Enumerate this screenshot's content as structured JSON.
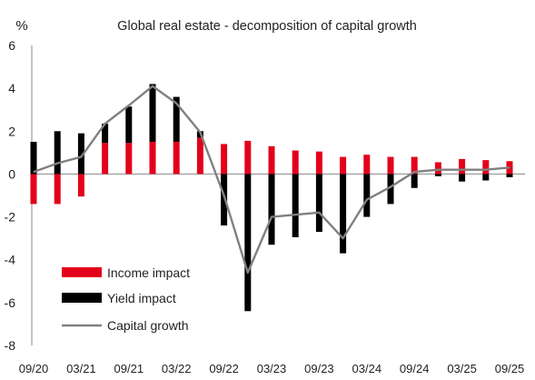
{
  "chart_data": {
    "type": "bar",
    "title": "Global real estate - decomposition of capital growth",
    "y_unit_label": "%",
    "ylim": [
      -8,
      6
    ],
    "y_ticks": [
      6,
      4,
      2,
      0,
      -2,
      -4,
      -6,
      -8
    ],
    "grid": false,
    "legend_position": "bottom-left",
    "categories": [
      "09/20",
      "12/20",
      "03/21",
      "06/21",
      "09/21",
      "12/21",
      "03/22",
      "06/22",
      "09/22",
      "12/22",
      "03/23",
      "06/23",
      "09/23",
      "12/23",
      "03/24",
      "06/24",
      "09/24",
      "12/24",
      "03/25",
      "06/25",
      "09/25"
    ],
    "x_tick_labels": [
      "09/20",
      "03/21",
      "09/21",
      "03/22",
      "09/22",
      "03/23",
      "09/23",
      "03/24",
      "09/24",
      "03/25",
      "09/25"
    ],
    "series": [
      {
        "name": "Income impact",
        "kind": "bar",
        "color": "#e3001b",
        "values": [
          -1.4,
          -1.4,
          -1.05,
          1.45,
          1.45,
          1.5,
          1.5,
          1.7,
          1.4,
          1.55,
          1.3,
          1.1,
          1.05,
          0.8,
          0.9,
          0.8,
          0.8,
          0.55,
          0.7,
          0.65,
          0.6
        ]
      },
      {
        "name": "Yield impact",
        "kind": "bar",
        "color": "#000000",
        "values": [
          1.5,
          2.0,
          1.9,
          0.9,
          1.7,
          2.7,
          2.1,
          0.3,
          -2.4,
          -6.4,
          -3.3,
          -2.95,
          -2.7,
          -3.7,
          -2.0,
          -1.4,
          -0.65,
          -0.1,
          -0.35,
          -0.3,
          -0.15
        ]
      },
      {
        "name": "Capital growth",
        "kind": "line",
        "color": "#808080",
        "values": [
          0.1,
          0.5,
          0.8,
          2.35,
          3.2,
          4.1,
          3.3,
          1.95,
          -1.0,
          -4.6,
          -2.0,
          -1.9,
          -1.8,
          -3.0,
          -1.2,
          -0.6,
          0.1,
          0.2,
          0.2,
          0.2,
          0.3
        ]
      }
    ]
  }
}
